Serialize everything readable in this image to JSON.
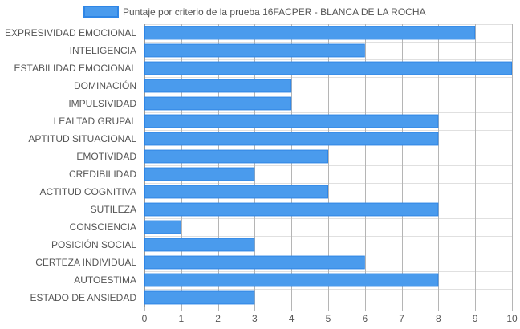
{
  "colors": {
    "bar_fill": "#4a9bed",
    "bar_stroke": "#2f86e6",
    "grid": "#e0e0e0",
    "axis": "#999999",
    "text": "#555555"
  },
  "chart_data": {
    "type": "bar",
    "orientation": "horizontal",
    "grid": true,
    "legend_position": "top",
    "xlim": [
      0,
      10
    ],
    "x_ticks": [
      "0",
      "1",
      "2",
      "3",
      "4",
      "5",
      "6",
      "7",
      "8",
      "9",
      "10"
    ],
    "categories": [
      "EXPRESIVIDAD EMOCIONAL",
      "INTELIGENCIA",
      "ESTABILIDAD EMOCIONAL",
      "DOMINACIÓN",
      "IMPULSIVIDAD",
      "LEALTAD GRUPAL",
      "APTITUD SITUACIONAL",
      "EMOTIVIDAD",
      "CREDIBILIDAD",
      "ACTITUD COGNITIVA",
      "SUTILEZA",
      "CONSCIENCIA",
      "POSICIÓN SOCIAL",
      "CERTEZA INDIVIDUAL",
      "AUTOESTIMA",
      "ESTADO DE ANSIEDAD"
    ],
    "series": [
      {
        "name": "Puntaje por criterio de la prueba 16FACPER - BLANCA DE LA ROCHA",
        "values": [
          9,
          6,
          10,
          4,
          4,
          8,
          8,
          5,
          3,
          5,
          8,
          1,
          3,
          6,
          8,
          3
        ]
      }
    ]
  }
}
